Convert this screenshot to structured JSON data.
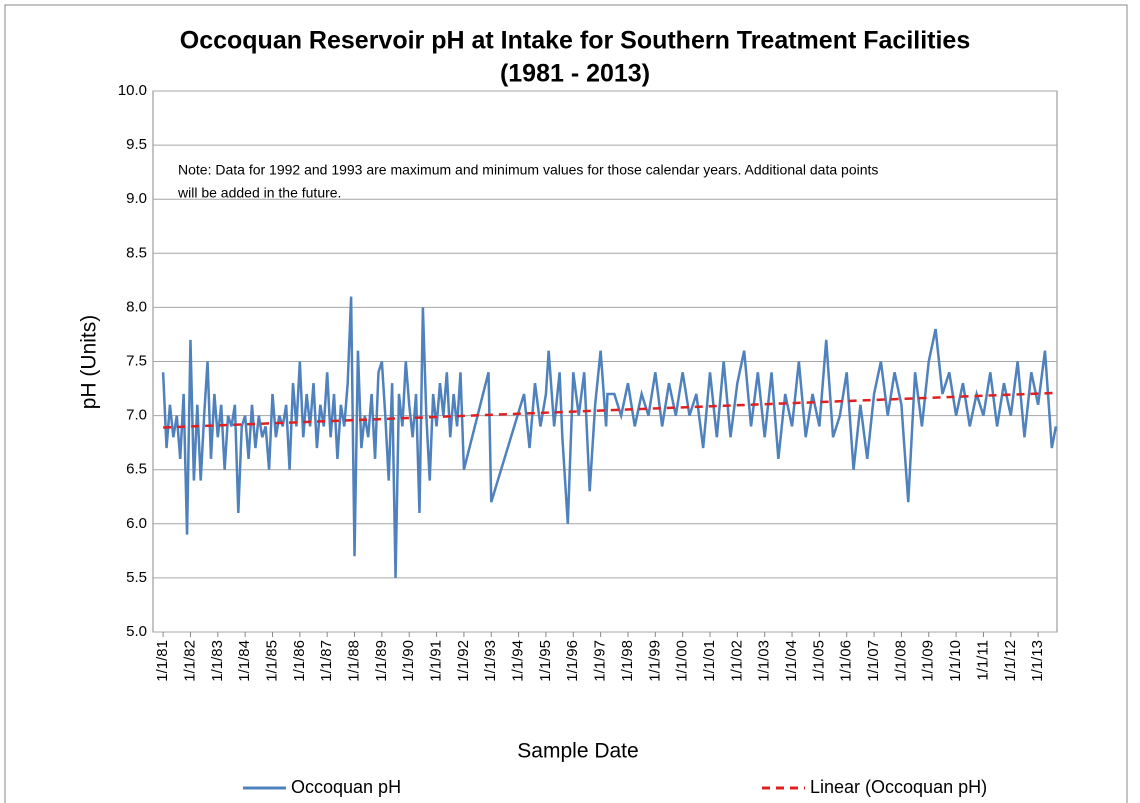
{
  "chart_data": {
    "type": "line",
    "title": "Occoquan Reservoir pH at Intake for Southern Treatment Facilities",
    "subtitle": "(1981 -  2013)",
    "xlabel": "Sample Date",
    "ylabel": "pH (Units)",
    "annotations": [
      "Note: Data for 1992 and 1993 are maximum and minimum values for those calendar years.  Additional data points",
      "will be added in the future."
    ],
    "xlim": [
      1980.63,
      2013.69
    ],
    "ylim": [
      5,
      10
    ],
    "yticks": [
      {
        "value": 5,
        "label": "5.0"
      },
      {
        "value": 5.5,
        "label": "5.5"
      },
      {
        "value": 6,
        "label": "6.0"
      },
      {
        "value": 6.5,
        "label": "6.5"
      },
      {
        "value": 7,
        "label": "7.0"
      },
      {
        "value": 7.5,
        "label": "7.5"
      },
      {
        "value": 8,
        "label": "8.0"
      },
      {
        "value": 8.5,
        "label": "8.5"
      },
      {
        "value": 9,
        "label": "9.0"
      },
      {
        "value": 9.5,
        "label": "9.5"
      },
      {
        "value": 10,
        "label": "10.0"
      }
    ],
    "xticks": [
      {
        "value": 1981,
        "label": "1/1/81"
      },
      {
        "value": 1982,
        "label": "1/1/82"
      },
      {
        "value": 1983,
        "label": "1/1/83"
      },
      {
        "value": 1984,
        "label": "1/1/84"
      },
      {
        "value": 1985,
        "label": "1/1/85"
      },
      {
        "value": 1986,
        "label": "1/1/86"
      },
      {
        "value": 1987,
        "label": "1/1/87"
      },
      {
        "value": 1988,
        "label": "1/1/88"
      },
      {
        "value": 1989,
        "label": "1/1/89"
      },
      {
        "value": 1990,
        "label": "1/1/90"
      },
      {
        "value": 1991,
        "label": "1/1/91"
      },
      {
        "value": 1992,
        "label": "1/1/92"
      },
      {
        "value": 1993,
        "label": "1/1/93"
      },
      {
        "value": 1994,
        "label": "1/1/94"
      },
      {
        "value": 1995,
        "label": "1/1/95"
      },
      {
        "value": 1996,
        "label": "1/1/96"
      },
      {
        "value": 1997,
        "label": "1/1/97"
      },
      {
        "value": 1998,
        "label": "1/1/98"
      },
      {
        "value": 1999,
        "label": "1/1/99"
      },
      {
        "value": 2000,
        "label": "1/1/00"
      },
      {
        "value": 2001,
        "label": "1/1/01"
      },
      {
        "value": 2002,
        "label": "1/1/02"
      },
      {
        "value": 2003,
        "label": "1/1/03"
      },
      {
        "value": 2004,
        "label": "1/1/04"
      },
      {
        "value": 2005,
        "label": "1/1/05"
      },
      {
        "value": 2006,
        "label": "1/1/06"
      },
      {
        "value": 2007,
        "label": "1/1/07"
      },
      {
        "value": 2008,
        "label": "1/1/08"
      },
      {
        "value": 2009,
        "label": "1/1/09"
      },
      {
        "value": 2010,
        "label": "1/1/10"
      },
      {
        "value": 2011,
        "label": "1/1/11"
      },
      {
        "value": 2012,
        "label": "1/1/12"
      },
      {
        "value": 2013,
        "label": "1/1/13"
      }
    ],
    "grid": true,
    "legend": "bottom",
    "series": [
      {
        "name": "Occoquan pH",
        "color": "#4f81bd",
        "dash": false,
        "x": [
          1981,
          1981.125,
          1981.25,
          1981.375,
          1981.5,
          1981.625,
          1981.75,
          1981.875,
          1982,
          1982.125,
          1982.25,
          1982.375,
          1982.5,
          1982.625,
          1982.75,
          1982.875,
          1983,
          1983.125,
          1983.25,
          1983.375,
          1983.5,
          1983.625,
          1983.75,
          1983.875,
          1984,
          1984.125,
          1984.25,
          1984.375,
          1984.5,
          1984.625,
          1984.75,
          1984.875,
          1985,
          1985.125,
          1985.25,
          1985.375,
          1985.5,
          1985.625,
          1985.75,
          1985.875,
          1986,
          1986.125,
          1986.25,
          1986.375,
          1986.5,
          1986.625,
          1986.75,
          1986.875,
          1987,
          1987.125,
          1987.25,
          1987.375,
          1987.5,
          1987.625,
          1987.75,
          1987.875,
          1988,
          1988.125,
          1988.25,
          1988.375,
          1988.5,
          1988.625,
          1988.75,
          1988.875,
          1989,
          1989.125,
          1989.25,
          1989.375,
          1989.5,
          1989.625,
          1989.75,
          1989.875,
          1990,
          1990.125,
          1990.25,
          1990.375,
          1990.5,
          1990.625,
          1990.75,
          1990.875,
          1991,
          1991.125,
          1991.25,
          1991.375,
          1991.5,
          1991.625,
          1991.75,
          1991.875,
          1992,
          1992.9,
          1993,
          1994.2,
          1994.4,
          1994.6,
          1994.8,
          1995,
          1995.1,
          1995.3,
          1995.5,
          1995.6,
          1995.8,
          1996,
          1996.2,
          1996.4,
          1996.6,
          1996.8,
          1997,
          1997.2,
          1997.25,
          1997.5,
          1997.75,
          1998,
          1998.25,
          1998.5,
          1998.75,
          1999,
          1999.25,
          1999.5,
          1999.75,
          2000,
          2000.25,
          2000.5,
          2000.75,
          2001,
          2001.25,
          2001.5,
          2001.75,
          2002,
          2002.25,
          2002.5,
          2002.75,
          2003,
          2003.25,
          2003.5,
          2003.75,
          2004,
          2004.25,
          2004.5,
          2004.75,
          2005,
          2005.25,
          2005.5,
          2005.75,
          2006,
          2006.25,
          2006.5,
          2006.75,
          2007,
          2007.25,
          2007.5,
          2007.75,
          2008,
          2008.25,
          2008.5,
          2008.75,
          2009,
          2009.25,
          2009.5,
          2009.75,
          2010,
          2010.25,
          2010.5,
          2010.75,
          2011,
          2011.25,
          2011.5,
          2011.75,
          2012,
          2012.25,
          2012.5,
          2012.75,
          2013,
          2013.25,
          2013.5,
          2013.65
        ],
        "values": [
          7.4,
          6.7,
          7.1,
          6.8,
          7.0,
          6.6,
          7.2,
          5.9,
          7.7,
          6.4,
          7.1,
          6.4,
          7.0,
          7.5,
          6.6,
          7.2,
          6.8,
          7.1,
          6.5,
          7.0,
          6.9,
          7.1,
          6.1,
          6.9,
          7.0,
          6.6,
          7.1,
          6.7,
          7.0,
          6.8,
          6.9,
          6.5,
          7.2,
          6.8,
          7.0,
          6.9,
          7.1,
          6.5,
          7.3,
          6.9,
          7.5,
          6.8,
          7.2,
          6.9,
          7.3,
          6.7,
          7.1,
          6.9,
          7.4,
          6.8,
          7.2,
          6.6,
          7.1,
          6.9,
          7.3,
          8.1,
          5.7,
          7.6,
          6.7,
          7.0,
          6.8,
          7.2,
          6.6,
          7.4,
          7.5,
          7.0,
          6.4,
          7.3,
          5.5,
          7.2,
          6.9,
          7.5,
          7.1,
          6.8,
          7.2,
          6.1,
          8.0,
          7.0,
          6.4,
          7.2,
          6.9,
          7.3,
          7.0,
          7.4,
          6.8,
          7.2,
          6.9,
          7.4,
          6.5,
          7.4,
          6.2,
          7.2,
          6.7,
          7.3,
          6.9,
          7.2,
          7.6,
          6.9,
          7.4,
          6.8,
          6.0,
          7.4,
          7.0,
          7.4,
          6.3,
          7.1,
          7.6,
          6.9,
          7.2,
          7.2,
          7.0,
          7.3,
          6.9,
          7.2,
          7.0,
          7.4,
          6.9,
          7.3,
          7.0,
          7.4,
          7.0,
          7.2,
          6.7,
          7.4,
          6.8,
          7.5,
          6.8,
          7.3,
          7.6,
          6.9,
          7.4,
          6.8,
          7.4,
          6.6,
          7.2,
          6.9,
          7.5,
          6.8,
          7.2,
          6.9,
          7.7,
          6.8,
          7.0,
          7.4,
          6.5,
          7.1,
          6.6,
          7.2,
          7.5,
          7.0,
          7.4,
          7.1,
          6.2,
          7.4,
          6.9,
          7.5,
          7.8,
          7.2,
          7.4,
          7.0,
          7.3,
          6.9,
          7.2,
          7.0,
          7.4,
          6.9,
          7.3,
          7.0,
          7.5,
          6.8,
          7.4,
          7.1,
          7.6,
          6.7,
          6.9
        ]
      },
      {
        "name": "Linear (Occoquan pH)",
        "color": "#e02020",
        "dash": true,
        "x": [
          1981,
          2013.69
        ],
        "values": [
          6.89,
          7.21
        ]
      }
    ]
  }
}
